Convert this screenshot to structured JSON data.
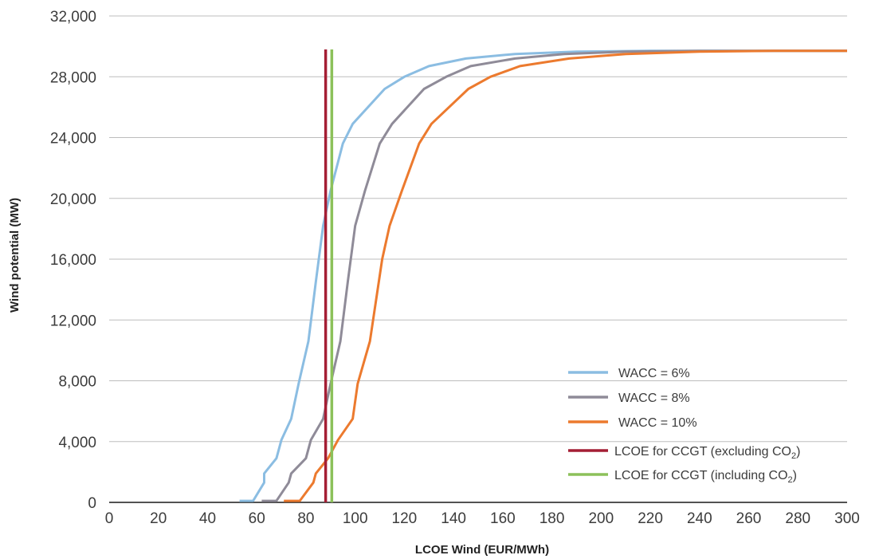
{
  "chart_data": {
    "type": "line",
    "title": "",
    "xlabel": "LCOE Wind (EUR/MWh)",
    "ylabel": "Wind potential (MW)",
    "xlim": [
      0,
      300
    ],
    "ylim": [
      0,
      32000
    ],
    "x_ticks": [
      0,
      20,
      40,
      60,
      80,
      100,
      120,
      140,
      160,
      180,
      200,
      220,
      240,
      260,
      280,
      300
    ],
    "y_ticks": [
      0,
      4000,
      8000,
      12000,
      16000,
      20000,
      24000,
      28000,
      32000
    ],
    "y_tick_labels": [
      "0",
      "4,000",
      "8,000",
      "12,000",
      "16,000",
      "20,000",
      "24,000",
      "28,000",
      "32,000"
    ],
    "grid": "horizontal",
    "legend_position": "lower-right",
    "series": [
      {
        "name": "WACC = 6%",
        "color": "#8bbde2",
        "points": [
          [
            53,
            100
          ],
          [
            58.5,
            100
          ],
          [
            63,
            1300
          ],
          [
            63,
            1900
          ],
          [
            68,
            2900
          ],
          [
            70,
            4100
          ],
          [
            74,
            5500
          ],
          [
            77,
            7800
          ],
          [
            81,
            10600
          ],
          [
            84,
            14500
          ],
          [
            87,
            18200
          ],
          [
            90,
            20500
          ],
          [
            95,
            23600
          ],
          [
            99,
            24900
          ],
          [
            112,
            27200
          ],
          [
            120,
            28000
          ],
          [
            130,
            28700
          ],
          [
            145,
            29200
          ],
          [
            165,
            29500
          ],
          [
            190,
            29650
          ],
          [
            220,
            29700
          ],
          [
            300,
            29700
          ]
        ]
      },
      {
        "name": "WACC = 8%",
        "color": "#8f8b98",
        "points": [
          [
            62,
            100
          ],
          [
            68,
            100
          ],
          [
            73,
            1300
          ],
          [
            74,
            1900
          ],
          [
            80,
            2900
          ],
          [
            82,
            4100
          ],
          [
            87,
            5500
          ],
          [
            90,
            7800
          ],
          [
            94,
            10600
          ],
          [
            97,
            14500
          ],
          [
            100,
            18200
          ],
          [
            104,
            20500
          ],
          [
            110,
            23600
          ],
          [
            115,
            24900
          ],
          [
            128,
            27200
          ],
          [
            137,
            28000
          ],
          [
            147,
            28700
          ],
          [
            165,
            29200
          ],
          [
            185,
            29500
          ],
          [
            210,
            29650
          ],
          [
            240,
            29700
          ],
          [
            300,
            29700
          ]
        ]
      },
      {
        "name": "WACC = 10%",
        "color": "#ec7a2e",
        "points": [
          [
            71,
            100
          ],
          [
            77.5,
            100
          ],
          [
            83,
            1300
          ],
          [
            84,
            1900
          ],
          [
            89,
            2900
          ],
          [
            93,
            4100
          ],
          [
            99,
            5500
          ],
          [
            101,
            7800
          ],
          [
            106,
            10600
          ],
          [
            111,
            16000
          ],
          [
            114,
            18200
          ],
          [
            119,
            20500
          ],
          [
            126,
            23600
          ],
          [
            131,
            24900
          ],
          [
            146,
            27200
          ],
          [
            155,
            28000
          ],
          [
            167,
            28700
          ],
          [
            187,
            29200
          ],
          [
            210,
            29500
          ],
          [
            240,
            29650
          ],
          [
            270,
            29700
          ],
          [
            300,
            29700
          ]
        ]
      }
    ],
    "vertical_lines": [
      {
        "name": "LCOE for CCGT (excluding CO2)",
        "label_main": "LCOE for CCGT (excluding CO",
        "label_sub": "2",
        "label_end": ")",
        "x": 88,
        "y_top": 29800,
        "color": "#a41e34"
      },
      {
        "name": "LCOE for CCGT (including CO2)",
        "label_main": "LCOE for CCGT (including CO",
        "label_sub": "2",
        "label_end": ")",
        "x": 90.5,
        "y_top": 29800,
        "color": "#8cc15a"
      }
    ]
  }
}
